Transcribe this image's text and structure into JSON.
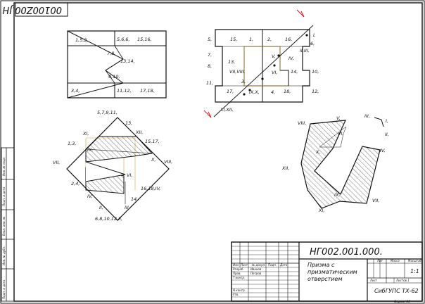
{
  "sheet": {
    "stamp_code": "00100Z00.JH",
    "ink_color": "#111111",
    "accent_color": "#d2a23a",
    "cut_line_color": "#c81e1e"
  },
  "left_strip": [
    "Инв. № подл.",
    "Подп. и дата",
    "Взам. инв. №",
    "Инв. № дубл.",
    "Подп. и дата"
  ],
  "front_view_labels": [
    "1,5,2,",
    "5,6,6,",
    "15,16,",
    "7,8,",
    "13,14,",
    "9,10,",
    "3,4,",
    "11,12,",
    "17,18,"
  ],
  "top_view_labels": [
    "5,",
    "15,",
    "1,",
    "2,",
    "16,",
    "6,",
    "7,",
    "8,",
    "13,",
    "V,",
    "IV,",
    "II,III,",
    "VII,VIII,",
    "VI,",
    "14,",
    "10,",
    "11,",
    "3,",
    "17,",
    "IX,X,",
    "4,",
    "18,",
    "12,",
    "XI,XII,",
    "I,"
  ],
  "side_view_labels": [
    "5,7,9,11,",
    "13,",
    "XI,",
    "XII,",
    "1,3,",
    "15,17,",
    "IX,",
    "X,",
    "VII,",
    "VIII,",
    "VI,",
    "2,4,",
    "16,18,IV,",
    "IV,",
    "14,",
    "II,",
    "III,",
    "6,8,10,12,II,"
  ],
  "section_labels": [
    "VIII,",
    "V,",
    "III,",
    "I,",
    "VI,",
    "II,",
    "X,",
    "IV,",
    "XII,",
    "IX,",
    "VII,",
    "XI,"
  ],
  "title_block": {
    "designation": "НГ002.001.000.",
    "title_lines": [
      "Призма с",
      "призматическим",
      "отверстием"
    ],
    "col_headers": [
      "Лит",
      "Масса",
      "Масштаб"
    ],
    "scale": "1:1",
    "sheet_label": "Лист",
    "sheets_label": "Листов 1",
    "organization": "СибГУПС ТХ-62",
    "format_label": "Формат А3",
    "row_labels": [
      "Изм",
      "Лист",
      "№ докум.",
      "Подп.",
      "Дата",
      "Разраб.",
      "Пров.",
      "Т.контр.",
      "Н.контр.",
      "Утв."
    ],
    "developer": "Иванов",
    "checker": "Петров"
  }
}
